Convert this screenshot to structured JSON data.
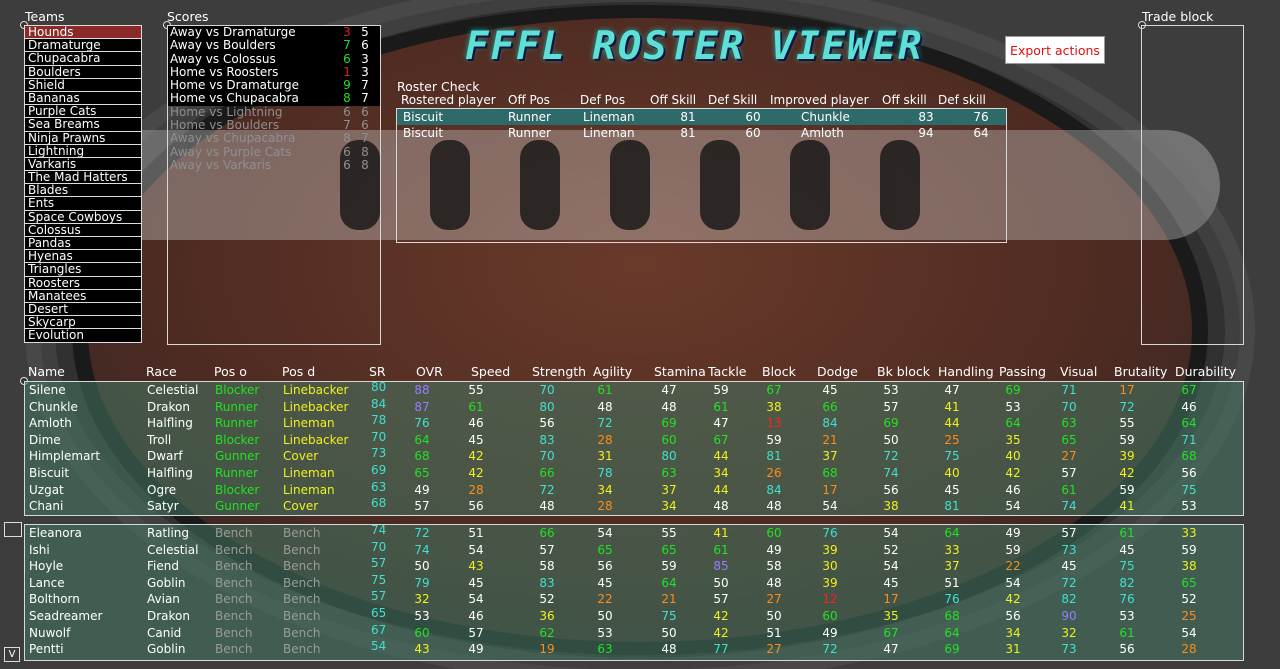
{
  "app": {
    "title": "FFFL ROSTER VIEWER",
    "export_label": "Export actions"
  },
  "teams": {
    "title": "Teams",
    "selected": 0,
    "items": [
      "Hounds",
      "Dramaturge",
      "Chupacabra",
      "Boulders",
      "Shield",
      "Bananas",
      "Purple Cats",
      "Sea Breams",
      "Ninja Prawns",
      "Lightning",
      "Varkaris",
      "The Mad Hatters",
      "Blades",
      "Ents",
      "Space Cowboys",
      "Colossus",
      "Pandas",
      "Hyenas",
      "Triangles",
      "Roosters",
      "Manatees",
      "Desert",
      "Skycarp",
      "Evolution"
    ]
  },
  "scores": {
    "title": "Scores",
    "items": [
      {
        "game": "Away vs Dramaturge",
        "s1": "3",
        "s1c": "#e02020",
        "s2": "5",
        "dim": false
      },
      {
        "game": "Away vs Boulders",
        "s1": "7",
        "s1c": "#22e022",
        "s2": "6",
        "dim": false
      },
      {
        "game": "Away vs Colossus",
        "s1": "6",
        "s1c": "#22e022",
        "s2": "3",
        "dim": false
      },
      {
        "game": "Home vs Roosters",
        "s1": "1",
        "s1c": "#e02020",
        "s2": "3",
        "dim": false
      },
      {
        "game": "Home vs Dramaturge",
        "s1": "9",
        "s1c": "#22e022",
        "s2": "7",
        "dim": false
      },
      {
        "game": "Home vs Chupacabra",
        "s1": "8",
        "s1c": "#22e022",
        "s2": "7",
        "dim": false
      },
      {
        "game": "Home vs Lightning",
        "s1": "6",
        "s1c": "#8f8f8f",
        "s2": "6",
        "dim": true
      },
      {
        "game": "Home vs Boulders",
        "s1": "7",
        "s1c": "#8f8f8f",
        "s2": "6",
        "dim": true
      },
      {
        "game": "Away vs Chupacabra",
        "s1": "8",
        "s1c": "#8f8f8f",
        "s2": "7",
        "dim": true
      },
      {
        "game": "Away vs Purple Cats",
        "s1": "6",
        "s1c": "#8f8f8f",
        "s2": "8",
        "dim": true
      },
      {
        "game": "Away vs Varkaris",
        "s1": "6",
        "s1c": "#8f8f8f",
        "s2": "8",
        "dim": true
      }
    ]
  },
  "roster_check": {
    "title": "Roster Check",
    "headers": [
      "Rostered player",
      "Off Pos",
      "Def Pos",
      "Off Skill",
      "Def Skill",
      "Improved player",
      "Off skill",
      "Def skill"
    ],
    "rows": [
      [
        "Biscuit",
        "Runner",
        "Lineman",
        "81",
        "60",
        "Chunkle",
        "83",
        "76"
      ],
      [
        "Biscuit",
        "Runner",
        "Lineman",
        "81",
        "60",
        "Amloth",
        "94",
        "64"
      ]
    ]
  },
  "trade_block": {
    "title": "Trade block"
  },
  "player_headers": [
    "Name",
    "Race",
    "Pos o",
    "Pos d",
    "SR",
    "OVR",
    "Speed",
    "Strength",
    "Agility",
    "Stamina",
    "Tackle",
    "Block",
    "Dodge",
    "Bk block",
    "Handling",
    "Passing",
    "Visual",
    "Brutality",
    "Durability"
  ],
  "starters": [
    {
      "name": "Silene",
      "race": "Celestial",
      "po": "Blocker",
      "pd": "Linebacker",
      "sr": "80",
      "stats": [
        "88",
        "55",
        "70",
        "61",
        "47",
        "59",
        "67",
        "45",
        "53",
        "47",
        "69",
        "71",
        "17",
        "67"
      ]
    },
    {
      "name": "Chunkle",
      "race": "Drakon",
      "po": "Runner",
      "pd": "Linebacker",
      "sr": "84",
      "stats": [
        "87",
        "61",
        "80",
        "48",
        "48",
        "61",
        "38",
        "66",
        "57",
        "41",
        "53",
        "70",
        "72",
        "46"
      ]
    },
    {
      "name": "Amloth",
      "race": "Halfling",
      "po": "Runner",
      "pd": "Lineman",
      "sr": "78",
      "stats": [
        "76",
        "46",
        "56",
        "72",
        "69",
        "47",
        "13",
        "84",
        "69",
        "44",
        "64",
        "63",
        "55",
        "64"
      ]
    },
    {
      "name": "Dime",
      "race": "Troll",
      "po": "Blocker",
      "pd": "Linebacker",
      "sr": "70",
      "stats": [
        "64",
        "45",
        "83",
        "28",
        "60",
        "67",
        "59",
        "21",
        "50",
        "25",
        "35",
        "65",
        "59",
        "71"
      ]
    },
    {
      "name": "Himplemart",
      "race": "Dwarf",
      "po": "Gunner",
      "pd": "Cover",
      "sr": "73",
      "stats": [
        "68",
        "42",
        "70",
        "31",
        "80",
        "44",
        "81",
        "37",
        "72",
        "75",
        "40",
        "27",
        "39",
        "68"
      ]
    },
    {
      "name": "Biscuit",
      "race": "Halfling",
      "po": "Runner",
      "pd": "Lineman",
      "sr": "69",
      "stats": [
        "65",
        "42",
        "66",
        "78",
        "63",
        "34",
        "26",
        "68",
        "74",
        "40",
        "42",
        "57",
        "42",
        "56"
      ]
    },
    {
      "name": "Uzgat",
      "race": "Ogre",
      "po": "Blocker",
      "pd": "Lineman",
      "sr": "63",
      "stats": [
        "49",
        "28",
        "72",
        "34",
        "37",
        "44",
        "84",
        "17",
        "56",
        "45",
        "46",
        "61",
        "59",
        "75"
      ]
    },
    {
      "name": "Chani",
      "race": "Satyr",
      "po": "Gunner",
      "pd": "Cover",
      "sr": "68",
      "stats": [
        "57",
        "56",
        "48",
        "28",
        "34",
        "48",
        "48",
        "54",
        "38",
        "81",
        "54",
        "74",
        "41",
        "53"
      ]
    }
  ],
  "bench": [
    {
      "name": "Eleanora",
      "race": "Ratling",
      "po": "Bench",
      "pd": "Bench",
      "sr": "74",
      "stats": [
        "72",
        "51",
        "66",
        "54",
        "55",
        "41",
        "60",
        "76",
        "54",
        "64",
        "49",
        "57",
        "61",
        "33"
      ]
    },
    {
      "name": "Ishi",
      "race": "Celestial",
      "po": "Bench",
      "pd": "Bench",
      "sr": "70",
      "stats": [
        "74",
        "54",
        "57",
        "65",
        "65",
        "61",
        "49",
        "39",
        "52",
        "33",
        "59",
        "73",
        "45",
        "59"
      ]
    },
    {
      "name": "Hoyle",
      "race": "Fiend",
      "po": "Bench",
      "pd": "Bench",
      "sr": "57",
      "stats": [
        "50",
        "43",
        "58",
        "56",
        "59",
        "85",
        "58",
        "30",
        "54",
        "37",
        "22",
        "45",
        "75",
        "38"
      ]
    },
    {
      "name": "Lance",
      "race": "Goblin",
      "po": "Bench",
      "pd": "Bench",
      "sr": "75",
      "stats": [
        "79",
        "45",
        "83",
        "45",
        "64",
        "50",
        "48",
        "39",
        "45",
        "51",
        "54",
        "72",
        "82",
        "65"
      ]
    },
    {
      "name": "Bolthorn",
      "race": "Avian",
      "po": "Bench",
      "pd": "Bench",
      "sr": "57",
      "stats": [
        "32",
        "54",
        "52",
        "22",
        "21",
        "57",
        "27",
        "12",
        "17",
        "76",
        "42",
        "82",
        "76",
        "52"
      ]
    },
    {
      "name": "Seadreamer",
      "race": "Drakon",
      "po": "Bench",
      "pd": "Bench",
      "sr": "65",
      "stats": [
        "53",
        "46",
        "36",
        "50",
        "75",
        "42",
        "50",
        "60",
        "35",
        "68",
        "56",
        "90",
        "53",
        "25"
      ]
    },
    {
      "name": "Nuwolf",
      "race": "Canid",
      "po": "Bench",
      "pd": "Bench",
      "sr": "67",
      "stats": [
        "60",
        "57",
        "62",
        "53",
        "50",
        "42",
        "51",
        "49",
        "67",
        "64",
        "34",
        "32",
        "61",
        "54"
      ]
    },
    {
      "name": "Pentti",
      "race": "Goblin",
      "po": "Bench",
      "pd": "Bench",
      "sr": "54",
      "stats": [
        "43",
        "49",
        "19",
        "63",
        "48",
        "77",
        "27",
        "72",
        "47",
        "69",
        "31",
        "73",
        "56",
        "28"
      ]
    }
  ],
  "toggle_label": "V",
  "colors": {
    "selected_team": "#8c2a2a",
    "title_teal": "#5fe0d6",
    "row_bg": "#46786a",
    "sr": "#40e0d0"
  }
}
